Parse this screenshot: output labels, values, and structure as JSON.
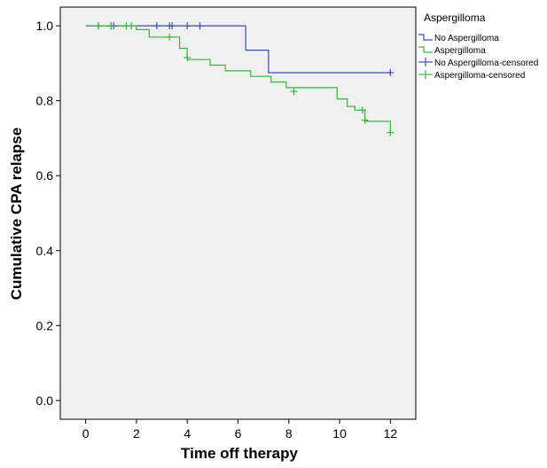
{
  "chart_data": {
    "type": "line",
    "subtype": "kaplan-meier-step",
    "xlabel": "Time off therapy",
    "ylabel": "Cumulative CPA relapse",
    "xlim": [
      -1,
      13
    ],
    "ylim": [
      -0.05,
      1.05
    ],
    "x_ticks": [
      0,
      2,
      4,
      6,
      8,
      10,
      12
    ],
    "y_ticks": [
      0.0,
      0.2,
      0.4,
      0.6,
      0.8,
      1.0
    ],
    "x_tick_labels": [
      "0",
      "2",
      "4",
      "6",
      "8",
      "10",
      "12"
    ],
    "y_tick_labels": [
      "0.0",
      "0.2",
      "0.4",
      "0.6",
      "0.8",
      "1.0"
    ],
    "grid": false,
    "legend_title": "Aspergilloma",
    "legend_placement": "top-right outside plot",
    "background_color": "#f0f0f0",
    "series": [
      {
        "name": "No Aspergilloma",
        "color": "#3d4fae",
        "steps": [
          [
            0,
            1.0
          ],
          [
            6.3,
            1.0
          ],
          [
            6.3,
            0.935
          ],
          [
            7.2,
            0.935
          ],
          [
            7.2,
            0.875
          ],
          [
            12.0,
            0.875
          ]
        ],
        "censored": [
          [
            0.5,
            1.0
          ],
          [
            1.0,
            1.0
          ],
          [
            1.1,
            1.0
          ],
          [
            2.8,
            1.0
          ],
          [
            3.3,
            1.0
          ],
          [
            3.4,
            1.0
          ],
          [
            4.0,
            1.0
          ],
          [
            4.5,
            1.0
          ],
          [
            12.0,
            0.875
          ]
        ]
      },
      {
        "name": "Aspergilloma",
        "color": "#3cb33c",
        "steps": [
          [
            0,
            1.0
          ],
          [
            2.0,
            1.0
          ],
          [
            2.0,
            0.99
          ],
          [
            2.5,
            0.99
          ],
          [
            2.5,
            0.97
          ],
          [
            3.7,
            0.97
          ],
          [
            3.7,
            0.94
          ],
          [
            4.0,
            0.94
          ],
          [
            4.0,
            0.91
          ],
          [
            4.9,
            0.91
          ],
          [
            4.9,
            0.895
          ],
          [
            5.5,
            0.895
          ],
          [
            5.5,
            0.88
          ],
          [
            6.5,
            0.88
          ],
          [
            6.5,
            0.865
          ],
          [
            7.3,
            0.865
          ],
          [
            7.3,
            0.85
          ],
          [
            7.9,
            0.85
          ],
          [
            7.9,
            0.835
          ],
          [
            9.9,
            0.835
          ],
          [
            9.9,
            0.805
          ],
          [
            10.3,
            0.805
          ],
          [
            10.3,
            0.785
          ],
          [
            10.6,
            0.785
          ],
          [
            10.6,
            0.775
          ],
          [
            11.0,
            0.775
          ],
          [
            11.0,
            0.745
          ],
          [
            12.0,
            0.745
          ],
          [
            12.0,
            0.715
          ]
        ],
        "censored": [
          [
            0.5,
            1.0
          ],
          [
            1.0,
            1.0
          ],
          [
            1.6,
            1.0
          ],
          [
            1.8,
            1.0
          ],
          [
            3.3,
            0.97
          ],
          [
            4.0,
            0.915
          ],
          [
            8.2,
            0.825
          ],
          [
            10.9,
            0.775
          ],
          [
            11.0,
            0.748
          ],
          [
            12.0,
            0.715
          ]
        ]
      }
    ],
    "legend_entries": [
      {
        "label": "No Aspergilloma",
        "color": "#3d4fae",
        "marker": "step"
      },
      {
        "label": "Aspergilloma",
        "color": "#3cb33c",
        "marker": "step"
      },
      {
        "label": "No Aspergilloma-censored",
        "color": "#3d4fae",
        "marker": "plus"
      },
      {
        "label": "Aspergilloma-censored",
        "color": "#3cb33c",
        "marker": "plus"
      }
    ]
  }
}
